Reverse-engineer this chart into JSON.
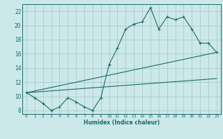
{
  "title": "",
  "xlabel": "Humidex (Indice chaleur)",
  "bg_color": "#cce8e8",
  "line_color": "#1a6b6b",
  "grid_color": "#aacccc",
  "xlim": [
    -0.5,
    23.5
  ],
  "ylim": [
    7.5,
    23.0
  ],
  "xticks": [
    0,
    1,
    2,
    3,
    4,
    5,
    6,
    7,
    8,
    9,
    10,
    11,
    12,
    13,
    14,
    15,
    16,
    17,
    18,
    19,
    20,
    21,
    22,
    23
  ],
  "yticks": [
    8,
    10,
    12,
    14,
    16,
    18,
    20,
    22
  ],
  "series1_x": [
    0,
    1,
    2,
    3,
    4,
    5,
    6,
    7,
    8,
    9,
    10,
    11,
    12,
    13,
    14,
    15,
    16,
    17,
    18,
    19,
    20,
    21,
    22,
    23
  ],
  "series1_y": [
    10.5,
    9.8,
    9.0,
    8.0,
    8.5,
    9.8,
    9.2,
    8.5,
    8.0,
    9.8,
    14.5,
    16.8,
    19.5,
    20.2,
    20.5,
    22.5,
    19.5,
    21.2,
    20.8,
    21.2,
    19.5,
    17.5,
    17.5,
    16.2
  ],
  "series2_x": [
    0,
    23
  ],
  "series2_y": [
    10.5,
    16.2
  ],
  "series3_x": [
    0,
    23
  ],
  "series3_y": [
    10.5,
    12.5
  ]
}
